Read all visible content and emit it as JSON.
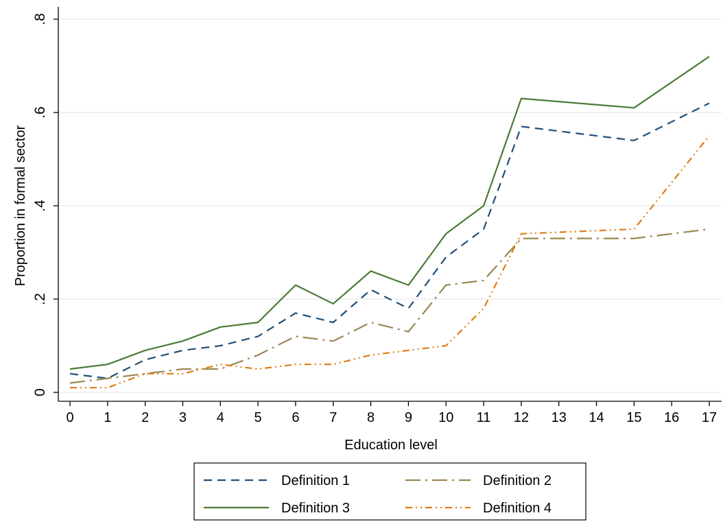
{
  "chart_data": {
    "type": "line",
    "title": "",
    "xlabel": "Education level",
    "ylabel": "Proportion in formal sector",
    "xlim": [
      0,
      17
    ],
    "ylim": [
      0,
      0.8
    ],
    "x_ticks": [
      0,
      1,
      2,
      3,
      4,
      5,
      6,
      7,
      8,
      9,
      10,
      11,
      12,
      13,
      14,
      15,
      16,
      17
    ],
    "x_tick_labels": [
      "0",
      "1",
      "2",
      "3",
      "4",
      "5",
      "6",
      "7",
      "8",
      "9",
      "10",
      "11",
      "12",
      "13",
      "14",
      "15",
      "16",
      "17"
    ],
    "y_ticks": [
      0,
      0.2,
      0.4,
      0.6,
      0.8
    ],
    "y_tick_labels": [
      "0",
      ".2",
      ".4",
      ".6",
      ".8"
    ],
    "grid": true,
    "legend_position": "bottom",
    "x": [
      0,
      1,
      2,
      3,
      4,
      5,
      6,
      7,
      8,
      9,
      10,
      11,
      12,
      15,
      17
    ],
    "series": [
      {
        "name": "Definition 1",
        "color": "#1f4e79",
        "dash": "dash",
        "values": [
          0.04,
          0.03,
          0.07,
          0.09,
          0.1,
          0.12,
          0.17,
          0.15,
          0.22,
          0.18,
          0.29,
          0.35,
          0.57,
          0.54,
          0.62
        ]
      },
      {
        "name": "Definition 2",
        "color": "#9a8652",
        "dash": "longdash-dot",
        "values": [
          0.02,
          0.03,
          0.04,
          0.05,
          0.05,
          0.08,
          0.12,
          0.11,
          0.15,
          0.13,
          0.23,
          0.24,
          0.33,
          0.33,
          0.35
        ]
      },
      {
        "name": "Definition 3",
        "color": "#4a7a35",
        "dash": "solid",
        "values": [
          0.05,
          0.06,
          0.09,
          0.11,
          0.14,
          0.15,
          0.23,
          0.19,
          0.26,
          0.23,
          0.34,
          0.4,
          0.63,
          0.61,
          0.72
        ]
      },
      {
        "name": "Definition 4",
        "color": "#e07b15",
        "dash": "dash-dot-dot",
        "values": [
          0.01,
          0.01,
          0.04,
          0.04,
          0.06,
          0.05,
          0.06,
          0.06,
          0.08,
          0.09,
          0.1,
          0.18,
          0.34,
          0.35,
          0.55
        ]
      }
    ]
  }
}
